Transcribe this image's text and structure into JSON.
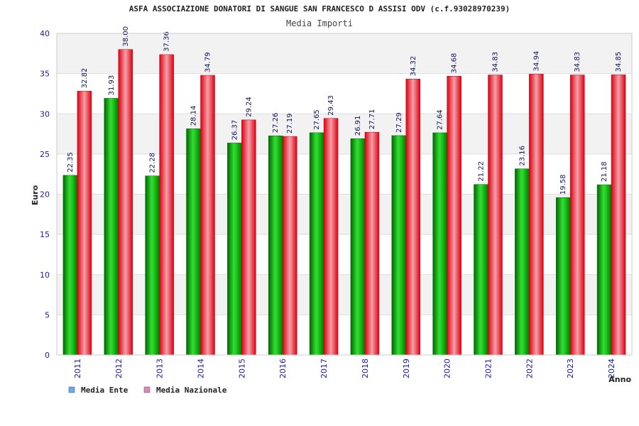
{
  "chart_data": {
    "type": "bar",
    "title": "ASFA ASSOCIAZIONE DONATORI DI SANGUE SAN FRANCESCO D ASSISI ODV (c.f.93028970239)",
    "subtitle": "Media Importi",
    "xlabel": "Anno",
    "ylabel": "Euro",
    "ylim": [
      0,
      40
    ],
    "yticks": [
      0,
      5,
      10,
      15,
      20,
      25,
      30,
      35,
      40
    ],
    "grid": true,
    "legend_position": "bottom-left",
    "categories": [
      "2011",
      "2012",
      "2013",
      "2014",
      "2015",
      "2016",
      "2017",
      "2018",
      "2019",
      "2020",
      "2021",
      "2022",
      "2023",
      "2024"
    ],
    "series": [
      {
        "name": "Media Ente",
        "color": "#22bb22",
        "legend_color": "#66aaee",
        "values": [
          22.35,
          31.93,
          22.28,
          28.14,
          26.37,
          27.26,
          27.65,
          26.91,
          27.29,
          27.64,
          21.22,
          23.16,
          19.58,
          21.18
        ],
        "labels": [
          "22.35",
          "31.93",
          "22.28",
          "28.14",
          "26.37",
          "27.26",
          "27.65",
          "26.91",
          "27.29",
          "27.64",
          "21.22",
          "23.16",
          "19.58",
          "21.18"
        ]
      },
      {
        "name": "Media Nazionale",
        "color": "#ee2233",
        "legend_color": "#dd88bb",
        "values": [
          32.82,
          38.0,
          37.36,
          34.79,
          29.24,
          27.19,
          29.43,
          27.71,
          34.32,
          34.68,
          34.83,
          34.94,
          34.83,
          34.85
        ],
        "labels": [
          "32.82",
          "38.00",
          "37.36",
          "34.79",
          "29.24",
          "27.19",
          "29.43",
          "27.71",
          "34.32",
          "34.68",
          "34.83",
          "34.94",
          "34.83",
          "34.85"
        ]
      }
    ]
  }
}
